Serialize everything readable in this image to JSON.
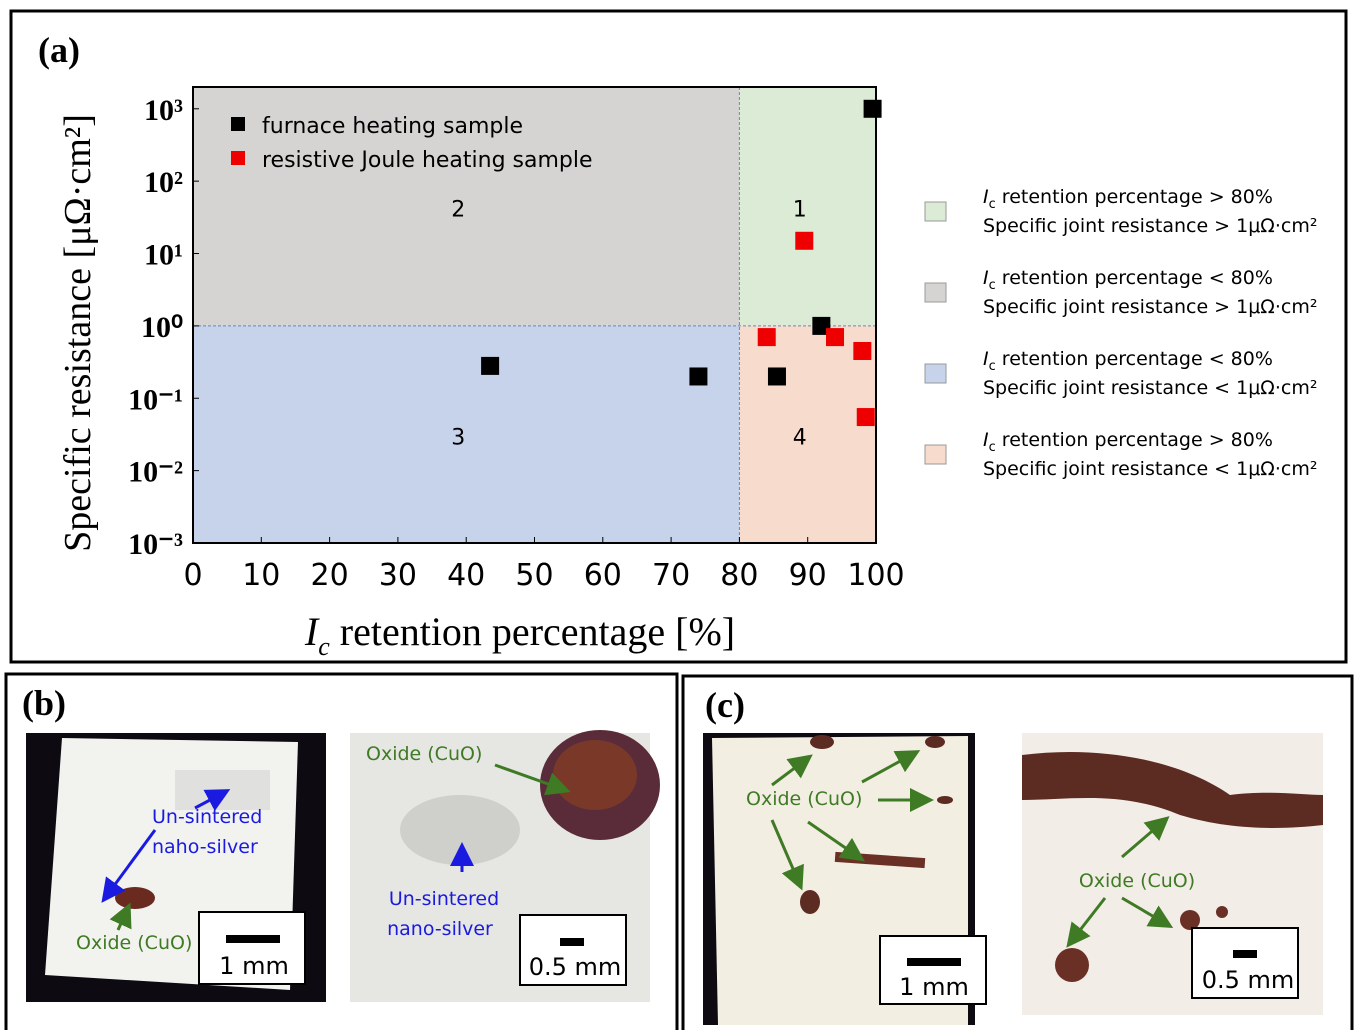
{
  "chart_data": {
    "type": "scatter",
    "panel": "(a)",
    "x_label": [
      "I",
      "c",
      " retention percentage [%]"
    ],
    "y_label": "Specific resistance [μΩ·cm²]",
    "xlim": [
      0,
      100
    ],
    "xticks": [
      0,
      10,
      20,
      30,
      40,
      50,
      60,
      70,
      80,
      90,
      100
    ],
    "ylim": [
      0.001,
      2000
    ],
    "log_y": true,
    "yticks": [
      {
        "value": 0.001,
        "label": "10⁻³"
      },
      {
        "value": 0.01,
        "label": "10⁻²"
      },
      {
        "value": 0.1,
        "label": "10⁻¹"
      },
      {
        "value": 1,
        "label": "10⁰"
      },
      {
        "value": 10,
        "label": "10¹"
      },
      {
        "value": 100,
        "label": "10²"
      },
      {
        "value": 1000,
        "label": "10³"
      }
    ],
    "thresholds": {
      "x": 80,
      "y": 1
    },
    "regions": [
      {
        "label": "1",
        "color": "#dcebd6",
        "x": [
          80,
          100
        ],
        "y": [
          1,
          2000
        ],
        "legend": [
          [
            "I",
            "c",
            " retention percentage > 80%"
          ],
          "Specific joint resistance > 1μΩ·cm²"
        ]
      },
      {
        "label": "2",
        "color": "#d6d3d3",
        "x": [
          0,
          80
        ],
        "y": [
          1,
          2000
        ],
        "legend": [
          [
            "I",
            "c",
            " retention percentage < 80%"
          ],
          "Specific joint resistance > 1μΩ·cm²"
        ]
      },
      {
        "label": "3",
        "color": "#c7d3ea",
        "x": [
          0,
          80
        ],
        "y": [
          0.001,
          1
        ],
        "legend": [
          [
            "I",
            "c",
            " retention percentage < 80%"
          ],
          "Specific joint resistance < 1μΩ·cm²"
        ]
      },
      {
        "label": "4",
        "color": "#f7dccd",
        "x": [
          80,
          100
        ],
        "y": [
          0.001,
          1
        ],
        "legend": [
          [
            "I",
            "c",
            " retention percentage > 80%"
          ],
          "Specific joint resistance < 1μΩ·cm²"
        ]
      }
    ],
    "series": [
      {
        "name": "furnace heating sample",
        "color": "#000000",
        "x": [
          43.5,
          74,
          85.5,
          92,
          99.5
        ],
        "values": [
          0.28,
          0.2,
          0.2,
          1.0,
          1000
        ]
      },
      {
        "name": "resistive Joule heating sample",
        "color": "#ee0000",
        "x": [
          89.5,
          84,
          94,
          98,
          98.5
        ],
        "values": [
          15,
          0.7,
          0.7,
          0.45,
          0.055
        ]
      }
    ]
  },
  "panel_b": {
    "label": "(b)",
    "left": {
      "annotations": [
        "Un-sintered",
        "naho-silver",
        "Oxide (CuO)"
      ],
      "scale": "1 mm"
    },
    "right": {
      "annotations": [
        "Oxide (CuO)",
        "Un-sintered",
        "nano-silver"
      ],
      "scale": "0.5 mm"
    }
  },
  "panel_c": {
    "label": "(c)",
    "left": {
      "annotations": [
        "Oxide (CuO)"
      ],
      "scale": "1 mm"
    },
    "right": {
      "annotations": [
        "Oxide (CuO)"
      ],
      "scale": "0.5 mm"
    }
  }
}
